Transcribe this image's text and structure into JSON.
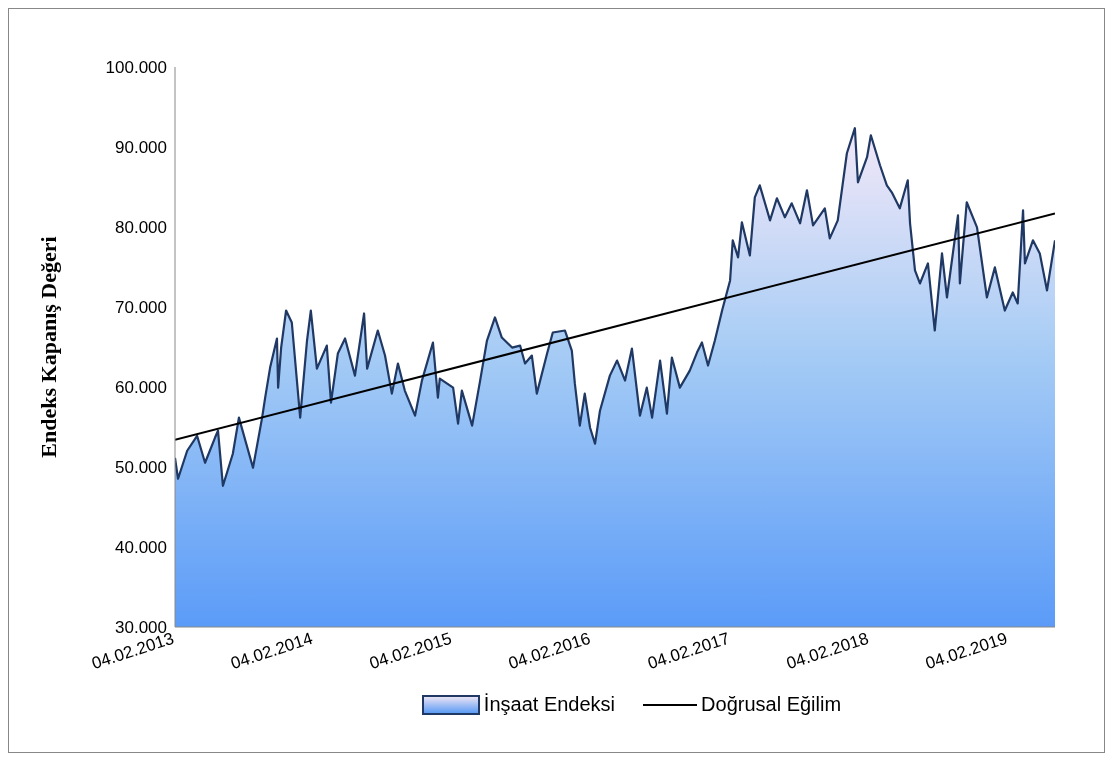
{
  "chart_data": {
    "type": "area",
    "ylabel": "Endeks Kapanış Değeri",
    "legend": "bottom",
    "xlim": [
      "2013-02-04",
      "2019-06-06"
    ],
    "xticks": [
      {
        "value": "2013-02-04",
        "label": "04.02.2013"
      },
      {
        "value": "2014-02-04",
        "label": "04.02.2014"
      },
      {
        "value": "2015-02-04",
        "label": "04.02.2015"
      },
      {
        "value": "2016-02-04",
        "label": "04.02.2016"
      },
      {
        "value": "2017-02-04",
        "label": "04.02.2017"
      },
      {
        "value": "2018-02-04",
        "label": "04.02.2018"
      },
      {
        "value": "2019-02-04",
        "label": "04.02.2019"
      }
    ],
    "ylim": [
      30000,
      100000
    ],
    "yticks": [
      {
        "value": 30000,
        "label": "30.000"
      },
      {
        "value": 40000,
        "label": "40.000"
      },
      {
        "value": 50000,
        "label": "50.000"
      },
      {
        "value": 60000,
        "label": "60.000"
      },
      {
        "value": 70000,
        "label": "70.000"
      },
      {
        "value": 80000,
        "label": "80.000"
      },
      {
        "value": 90000,
        "label": "90.000"
      },
      {
        "value": 100000,
        "label": "100.000"
      }
    ],
    "series": [
      {
        "name": "İnşaat Endeksi",
        "color": "#1f3864",
        "x": [
          "2013-02-04",
          "2013-02-12",
          "2013-03-08",
          "2013-04-03",
          "2013-04-24",
          "2013-05-20",
          "2013-05-28",
          "2013-06-10",
          "2013-07-06",
          "2013-07-22",
          "2013-08-28",
          "2013-09-21",
          "2013-09-29",
          "2013-10-12",
          "2013-10-30",
          "2013-11-02",
          "2013-11-10",
          "2013-11-23",
          "2013-12-08",
          "2013-12-30",
          "2014-01-17",
          "2014-01-27",
          "2014-02-12",
          "2014-03-10",
          "2014-03-21",
          "2014-04-08",
          "2014-04-27",
          "2014-05-23",
          "2014-06-16",
          "2014-06-24",
          "2014-07-22",
          "2014-08-10",
          "2014-08-28",
          "2014-09-13",
          "2014-10-01",
          "2014-10-28",
          "2014-11-15",
          "2014-12-14",
          "2014-12-27",
          "2015-01-01",
          "2015-02-05",
          "2015-02-18",
          "2015-02-28",
          "2015-03-27",
          "2015-04-17",
          "2015-05-05",
          "2015-05-26",
          "2015-06-13",
          "2015-07-10",
          "2015-07-31",
          "2015-08-13",
          "2015-08-31",
          "2015-09-13",
          "2015-10-10",
          "2015-10-25",
          "2015-11-26",
          "2015-12-14",
          "2015-12-22",
          "2016-01-04",
          "2016-01-17",
          "2016-01-31",
          "2016-02-13",
          "2016-02-26",
          "2016-03-23",
          "2016-04-11",
          "2016-05-02",
          "2016-05-20",
          "2016-06-10",
          "2016-06-28",
          "2016-07-12",
          "2016-08-02",
          "2016-08-20",
          "2016-09-02",
          "2016-09-23",
          "2016-10-19",
          "2016-11-07",
          "2016-11-20",
          "2016-12-06",
          "2016-12-24",
          "2017-01-12",
          "2017-02-02",
          "2017-02-09",
          "2017-02-23",
          "2017-03-05",
          "2017-03-26",
          "2017-04-08",
          "2017-04-21",
          "2017-05-18",
          "2017-06-05",
          "2017-06-26",
          "2017-07-14",
          "2017-08-05",
          "2017-08-23",
          "2017-09-08",
          "2017-10-09",
          "2017-10-22",
          "2017-11-12",
          "2017-12-06",
          "2017-12-27",
          "2018-01-04",
          "2018-01-28",
          "2018-02-07",
          "2018-03-03",
          "2018-03-21",
          "2018-04-03",
          "2018-04-24",
          "2018-05-15",
          "2018-05-21",
          "2018-06-03",
          "2018-06-16",
          "2018-07-07",
          "2018-07-25",
          "2018-08-13",
          "2018-08-26",
          "2018-09-24",
          "2018-09-29",
          "2018-10-17",
          "2018-11-13",
          "2018-12-09",
          "2018-12-30",
          "2019-01-25",
          "2019-02-15",
          "2019-02-28",
          "2019-03-14",
          "2019-03-19",
          "2019-04-09",
          "2019-04-27",
          "2019-05-16",
          "2019-06-06"
        ],
        "values": [
          51150,
          48530,
          52030,
          53900,
          50530,
          53650,
          54540,
          47650,
          51660,
          56170,
          49900,
          56170,
          58670,
          62430,
          66060,
          59920,
          64930,
          69560,
          68060,
          56170,
          65810,
          69560,
          62300,
          65180,
          58040,
          64180,
          66060,
          61420,
          69190,
          62300,
          67060,
          63930,
          59170,
          62930,
          59550,
          56420,
          60800,
          65560,
          58670,
          61050,
          59920,
          55410,
          59550,
          55170,
          60800,
          65810,
          68690,
          66180,
          64930,
          65180,
          62930,
          63930,
          59170,
          64180,
          66810,
          67060,
          64560,
          60420,
          55170,
          59170,
          54910,
          52910,
          57040,
          61420,
          63300,
          60800,
          64810,
          56420,
          59920,
          56170,
          63300,
          56670,
          63680,
          59920,
          62050,
          64300,
          65560,
          62680,
          65810,
          69560,
          73320,
          78330,
          76200,
          80580,
          76450,
          83710,
          85210,
          80830,
          83590,
          81210,
          82960,
          80460,
          84590,
          80200,
          82330,
          78580,
          80830,
          89220,
          92350,
          85590,
          88720,
          91470,
          87720,
          85210,
          84340,
          82330,
          85840,
          80460,
          74570,
          72940,
          75450,
          67060,
          76700,
          71190,
          81460,
          72940,
          83090,
          79950,
          71190,
          74950,
          69560,
          71820,
          70440,
          82080,
          75450,
          78330,
          76700,
          72070,
          78330
        ]
      },
      {
        "name": "Doğrusal Eğilim",
        "type": "line",
        "color": "#000000",
        "x": [
          "2013-02-04",
          "2019-06-06"
        ],
        "values": [
          53400,
          81700
        ]
      }
    ]
  }
}
